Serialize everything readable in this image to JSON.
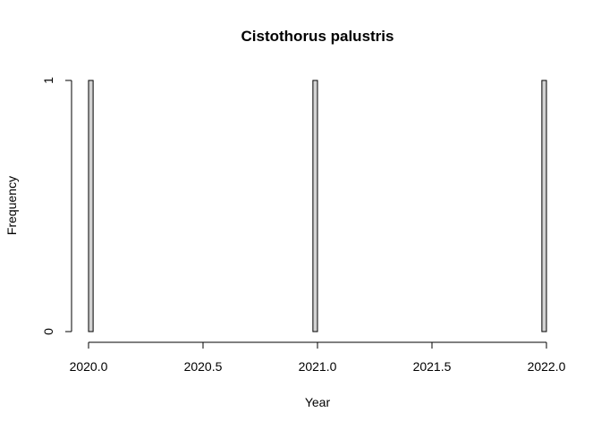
{
  "chart_data": {
    "type": "bar",
    "title": "Cistothorus palustris",
    "xlabel": "Year",
    "ylabel": "Frequency",
    "xlim": [
      2020.0,
      2022.0
    ],
    "ylim": [
      0,
      1
    ],
    "x_ticks": [
      "2020.0",
      "2020.5",
      "2021.0",
      "2021.5",
      "2022.0"
    ],
    "y_ticks": [
      "0",
      "1"
    ],
    "bin_width": 0.02,
    "bins": [
      {
        "start": 2020.0,
        "end": 2020.02,
        "count": 1
      },
      {
        "start": 2020.98,
        "end": 2021.0,
        "count": 1
      },
      {
        "start": 2021.98,
        "end": 2022.0,
        "count": 1
      }
    ],
    "bar_color": "#d3d3d3"
  }
}
